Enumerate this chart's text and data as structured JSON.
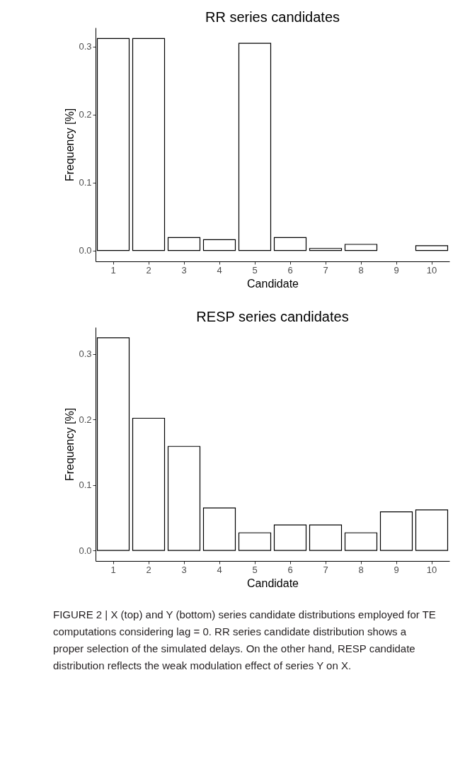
{
  "chart_data": [
    {
      "type": "bar",
      "title": "RR series candidates",
      "xlabel": "Candidate",
      "ylabel": "Frequency [%]",
      "categories": [
        "1",
        "2",
        "3",
        "4",
        "5",
        "6",
        "7",
        "8",
        "9",
        "10"
      ],
      "values": [
        0.312,
        0.312,
        0.019,
        0.016,
        0.305,
        0.019,
        0.003,
        0.009,
        null,
        0.007
      ],
      "color": "#ffffff",
      "ylim": [
        -0.016,
        0.328
      ],
      "yticks": [
        {
          "value": 0,
          "label": "0.0"
        },
        0.1,
        0.2,
        0.3
      ],
      "grid": false
    },
    {
      "type": "bar",
      "title": "RESP series candidates",
      "xlabel": "Candidate",
      "ylabel": "Frequency [%]",
      "categories": [
        "1",
        "2",
        "3",
        "4",
        "5",
        "6",
        "7",
        "8",
        "9",
        "10"
      ],
      "values": [
        0.325,
        0.202,
        0.159,
        0.065,
        0.027,
        0.039,
        0.039,
        0.027,
        0.059,
        0.062
      ],
      "color": "#ffffff",
      "ylim": [
        -0.016,
        0.341
      ],
      "yticks": [
        {
          "value": 0,
          "label": "0.0"
        },
        0.1,
        0.2,
        0.3
      ],
      "grid": false,
      "annotations": [
        "FIGURE 2 | X (top) and Y (bottom) series candidate distributions employed for TE computations considering lag = 0. RR series candidate distribution shows a proper selection of the simulated delays. On the other hand, RESP candidate distribution reflects the weak modulation effect of series Y on X."
      ]
    }
  ]
}
